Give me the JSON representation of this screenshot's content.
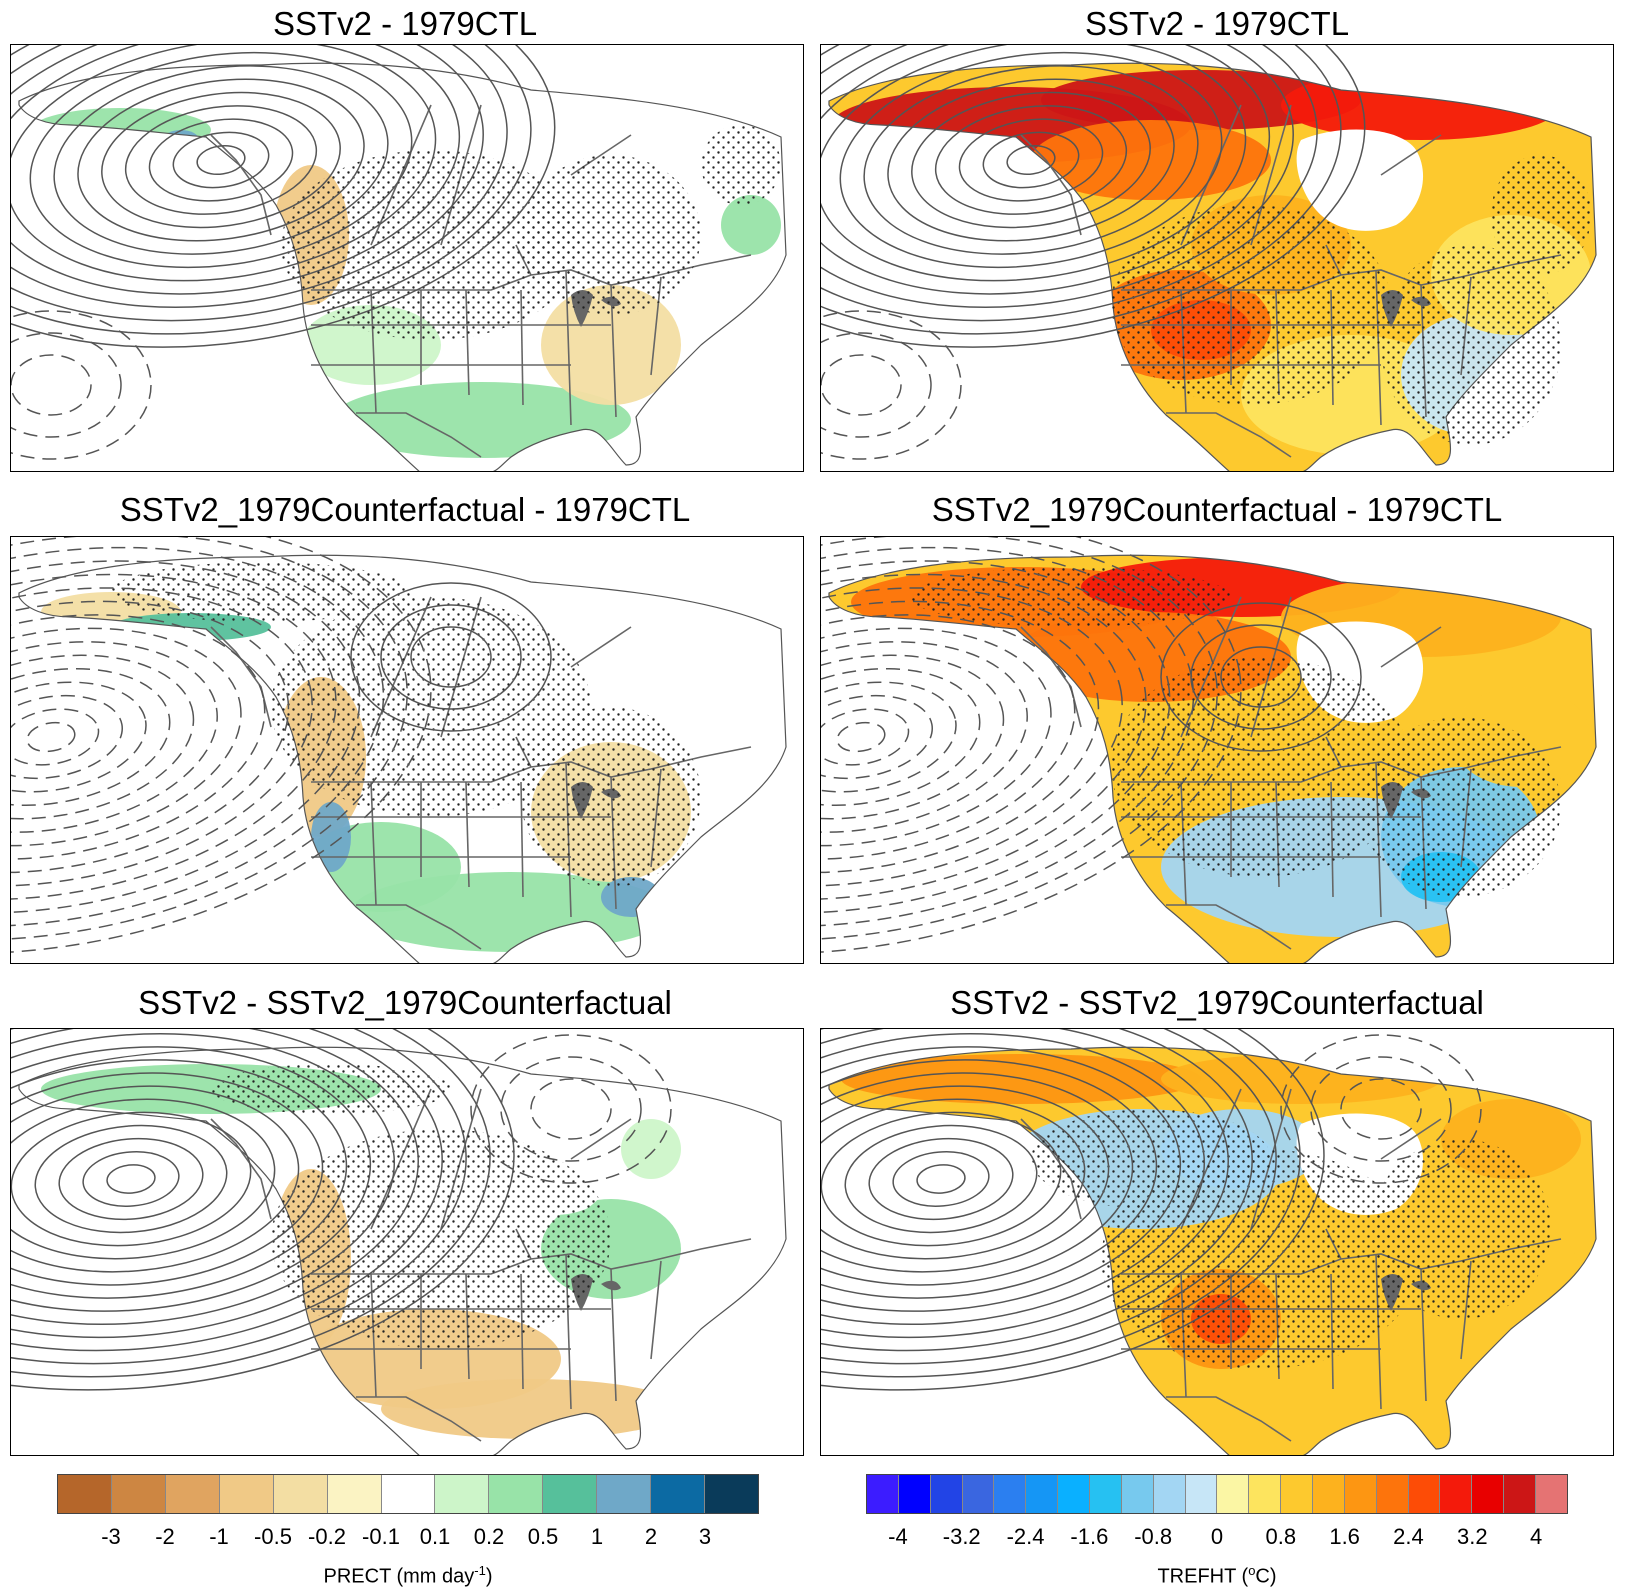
{
  "panels": [
    {
      "id": "p1",
      "title": "SSTv2 - 1979CTL",
      "variable": "PRECT"
    },
    {
      "id": "p2",
      "title": "SSTv2 - 1979CTL",
      "variable": "TREFHT"
    },
    {
      "id": "p3",
      "title": "SSTv2_1979Counterfactual - 1979CTL",
      "variable": "PRECT"
    },
    {
      "id": "p4",
      "title": "SSTv2_1979Counterfactual - 1979CTL",
      "variable": "TREFHT"
    },
    {
      "id": "p5",
      "title": "SSTv2 - SSTv2_1979Counterfactual",
      "variable": "PRECT"
    },
    {
      "id": "p6",
      "title": "SSTv2 - SSTv2_1979Counterfactual",
      "variable": "TREFHT"
    }
  ],
  "precip_colorbar": {
    "label_main": "PRECT (mm day",
    "label_sup": "-1",
    "label_end": ")",
    "colors": [
      "#b5662a",
      "#cd8642",
      "#e0a460",
      "#f0c986",
      "#f3dea3",
      "#fbf3c3",
      "#ffffff",
      "#cdf5c9",
      "#98e3a8",
      "#56c09b",
      "#6fa8c8",
      "#0c6aa3",
      "#0a3b5a"
    ],
    "ticks": [
      "-3",
      "-2",
      "-1",
      "-0.5",
      "-0.2",
      "-0.1",
      "0.1",
      "0.2",
      "0.5",
      "1",
      "2",
      "3"
    ]
  },
  "temp_colorbar": {
    "label_main": "TREFHT (",
    "label_sup": "o",
    "label_end": "C)",
    "colors": [
      "#3c1cff",
      "#0000ff",
      "#2244e6",
      "#3a66e0",
      "#2b7ff0",
      "#1596f5",
      "#0ab0ff",
      "#26c1f2",
      "#77c9ee",
      "#a3d6f3",
      "#c7e6f7",
      "#fbf6a4",
      "#fde45e",
      "#fdc92e",
      "#fdb21e",
      "#fd9612",
      "#fd740c",
      "#fd4c06",
      "#f41a0b",
      "#e80000",
      "#cc1616",
      "#e57373"
    ],
    "ticks": [
      "-4",
      "-3.2",
      "-2.4",
      "-1.6",
      "-0.8",
      "0",
      "0.8",
      "1.6",
      "2.4",
      "3.2",
      "4"
    ]
  }
}
